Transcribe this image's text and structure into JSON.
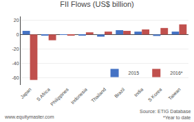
{
  "chart_data": {
    "type": "bar",
    "title": "FII Flows (US$ billion)",
    "categories": [
      "Japan",
      "S Africa",
      "Philippines",
      "Indonesia",
      "Thailand",
      "Brazil",
      "India",
      "S Korea",
      "Taiwan"
    ],
    "series": [
      {
        "name": "2015",
        "color": "#4472C4",
        "values": [
          5,
          -1,
          -0.5,
          -1,
          -3,
          6,
          4,
          -2,
          4
        ]
      },
      {
        "name": "2016*",
        "color": "#C0504D",
        "values": [
          -63,
          -8,
          -1.5,
          3,
          4,
          5,
          7,
          9,
          14
        ]
      }
    ],
    "ylim": [
      -70,
      25
    ],
    "yticks": [
      -60,
      -40,
      -20,
      0,
      20
    ],
    "grid": true,
    "legend": "lower right",
    "annotations": [
      "www.equitymaster.com",
      "Source: ETIG Database",
      "*Year to date"
    ]
  }
}
